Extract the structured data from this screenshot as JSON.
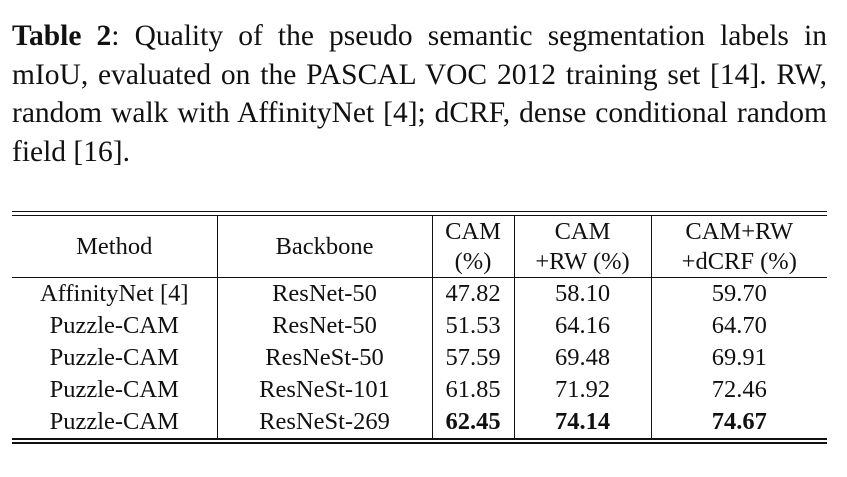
{
  "caption": {
    "label": "Table 2",
    "text": ": Quality of the pseudo semantic segmentation labels in mIoU, evaluated on the PASCAL VOC 2012 training set [14]. RW, random walk with AffinityNet [4]; dCRF, dense conditional random field [16]."
  },
  "table": {
    "headers": [
      {
        "line1": "Method",
        "line2": ""
      },
      {
        "line1": "Backbone",
        "line2": ""
      },
      {
        "line1": "CAM",
        "line2": "(%)"
      },
      {
        "line1": "CAM",
        "line2": "+RW (%)"
      },
      {
        "line1": "CAM+RW",
        "line2": "+dCRF (%)"
      }
    ],
    "rows": [
      {
        "method": "AffinityNet [4]",
        "backbone": "ResNet-50",
        "cam": "47.82",
        "cam_rw": "58.10",
        "cam_rw_dcrf": "59.70",
        "bold": false
      },
      {
        "method": "Puzzle-CAM",
        "backbone": "ResNet-50",
        "cam": "51.53",
        "cam_rw": "64.16",
        "cam_rw_dcrf": "64.70",
        "bold": false
      },
      {
        "method": "Puzzle-CAM",
        "backbone": "ResNeSt-50",
        "cam": "57.59",
        "cam_rw": "69.48",
        "cam_rw_dcrf": "69.91",
        "bold": false
      },
      {
        "method": "Puzzle-CAM",
        "backbone": "ResNeSt-101",
        "cam": "61.85",
        "cam_rw": "71.92",
        "cam_rw_dcrf": "72.46",
        "bold": false
      },
      {
        "method": "Puzzle-CAM",
        "backbone": "ResNeSt-269",
        "cam": "62.45",
        "cam_rw": "74.14",
        "cam_rw_dcrf": "74.67",
        "bold": true
      }
    ]
  }
}
